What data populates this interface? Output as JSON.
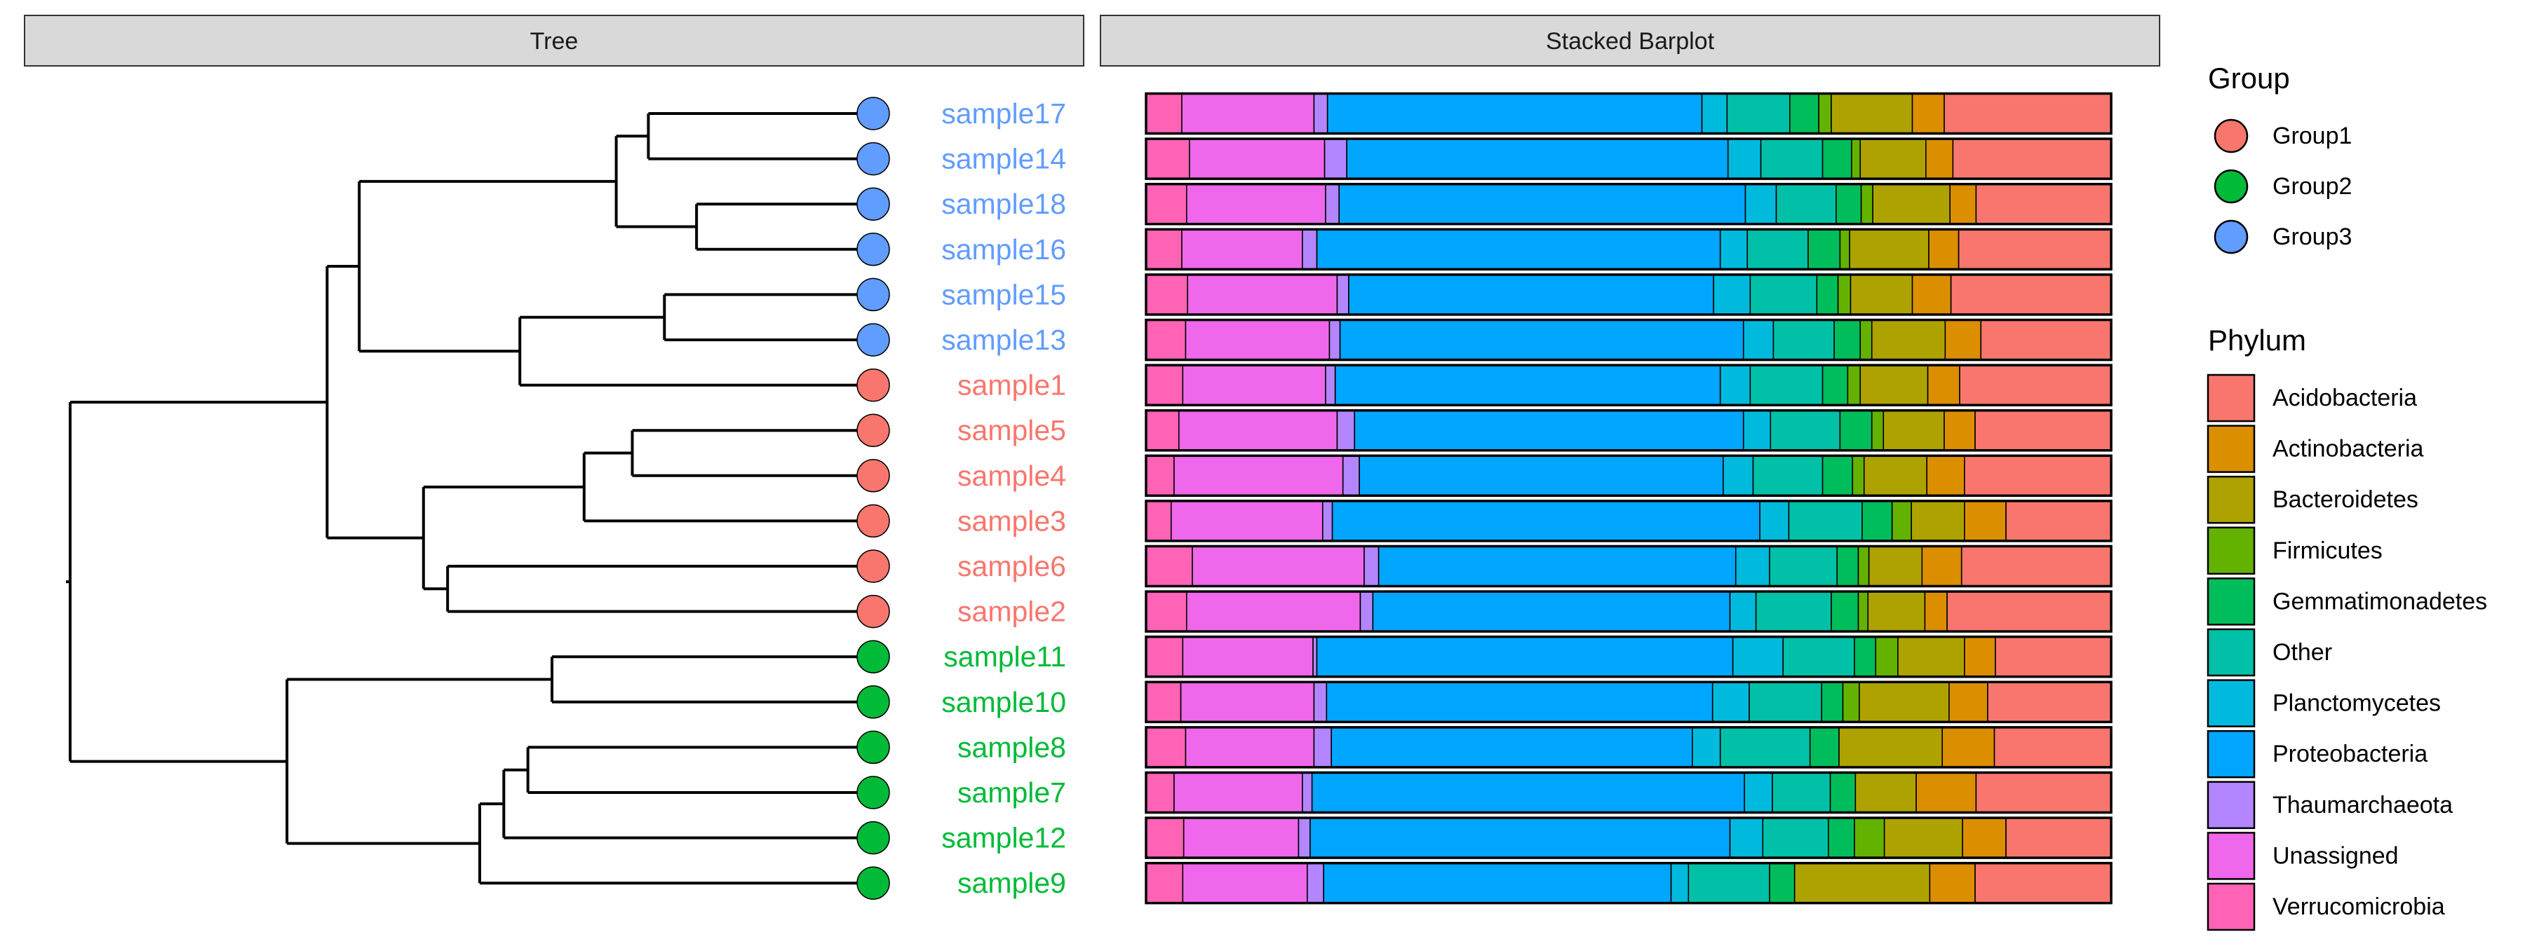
{
  "chart_data": {
    "type": "bar",
    "orientation": "horizontal",
    "stacked": true,
    "normalized": true,
    "panels": [
      "Tree",
      "Stacked Barplot"
    ],
    "categories": [
      "sample17",
      "sample14",
      "sample18",
      "sample16",
      "sample15",
      "sample13",
      "sample1",
      "sample5",
      "sample4",
      "sample3",
      "sample6",
      "sample2",
      "sample11",
      "sample10",
      "sample8",
      "sample7",
      "sample12",
      "sample9"
    ],
    "groups": {
      "sample17": "Group3",
      "sample14": "Group3",
      "sample18": "Group3",
      "sample16": "Group3",
      "sample15": "Group3",
      "sample13": "Group3",
      "sample1": "Group1",
      "sample5": "Group1",
      "sample4": "Group1",
      "sample3": "Group1",
      "sample6": "Group1",
      "sample2": "Group1",
      "sample11": "Group2",
      "sample10": "Group2",
      "sample8": "Group2",
      "sample7": "Group2",
      "sample12": "Group2",
      "sample9": "Group2"
    },
    "tree": {
      "children": [
        {
          "children": [
            {
              "children": [
                {
                  "children": [
                    {
                      "children": [
                        {
                          "tip": "sample17"
                        },
                        {
                          "tip": "sample14"
                        }
                      ],
                      "h": 0.28
                    },
                    {
                      "children": [
                        {
                          "tip": "sample18"
                        },
                        {
                          "tip": "sample16"
                        }
                      ],
                      "h": 0.22
                    }
                  ],
                  "h": 0.32
                },
                {
                  "children": [
                    {
                      "children": [
                        {
                          "tip": "sample15"
                        },
                        {
                          "tip": "sample13"
                        }
                      ],
                      "h": 0.26
                    },
                    {
                      "tip": "sample1"
                    }
                  ],
                  "h": 0.44
                }
              ],
              "h": 0.64
            },
            {
              "children": [
                {
                  "children": [
                    {
                      "children": [
                        {
                          "tip": "sample5"
                        },
                        {
                          "tip": "sample4"
                        }
                      ],
                      "h": 0.3
                    },
                    {
                      "tip": "sample3"
                    }
                  ],
                  "h": 0.36
                },
                {
                  "children": [
                    {
                      "tip": "sample6"
                    },
                    {
                      "tip": "sample2"
                    }
                  ],
                  "h": 0.53
                }
              ],
              "h": 0.56
            }
          ],
          "h": 0.68
        },
        {
          "children": [
            {
              "children": [
                {
                  "tip": "sample11"
                },
                {
                  "tip": "sample10"
                }
              ],
              "h": 0.4
            },
            {
              "children": [
                {
                  "children": [
                    {
                      "children": [
                        {
                          "tip": "sample8"
                        },
                        {
                          "tip": "sample7"
                        }
                      ],
                      "h": 0.43
                    },
                    {
                      "tip": "sample12"
                    }
                  ],
                  "h": 0.46
                },
                {
                  "tip": "sample9"
                }
              ],
              "h": 0.49
            }
          ],
          "h": 0.73
        }
      ],
      "h": 1.0
    },
    "phyla": [
      "Acidobacteria",
      "Actinobacteria",
      "Bacteroidetes",
      "Firmicutes",
      "Gemmatimonadetes",
      "Other",
      "Planctomycetes",
      "Proteobacteria",
      "Thaumarchaeota",
      "Unassigned",
      "Verrucomicrobia"
    ],
    "series": [
      {
        "name": "Verrucomicrobia",
        "values": [
          0.037,
          0.045,
          0.042,
          0.037,
          0.043,
          0.041,
          0.038,
          0.034,
          0.029,
          0.026,
          0.048,
          0.042,
          0.038,
          0.036,
          0.041,
          0.029,
          0.039,
          0.038
        ]
      },
      {
        "name": "Unassigned",
        "values": [
          0.137,
          0.14,
          0.144,
          0.125,
          0.155,
          0.149,
          0.148,
          0.164,
          0.175,
          0.157,
          0.178,
          0.18,
          0.135,
          0.138,
          0.133,
          0.133,
          0.119,
          0.129
        ]
      },
      {
        "name": "Thaumarchaeota",
        "values": [
          0.014,
          0.023,
          0.014,
          0.015,
          0.012,
          0.011,
          0.01,
          0.018,
          0.017,
          0.01,
          0.015,
          0.013,
          0.004,
          0.013,
          0.018,
          0.01,
          0.012,
          0.017
        ]
      },
      {
        "name": "Proteobacteria",
        "values": [
          0.388,
          0.395,
          0.421,
          0.418,
          0.378,
          0.418,
          0.399,
          0.403,
          0.377,
          0.443,
          0.37,
          0.37,
          0.431,
          0.4,
          0.374,
          0.448,
          0.435,
          0.36
        ]
      },
      {
        "name": "Planctomycetes",
        "values": [
          0.026,
          0.034,
          0.032,
          0.028,
          0.038,
          0.031,
          0.031,
          0.028,
          0.031,
          0.03,
          0.035,
          0.027,
          0.052,
          0.038,
          0.029,
          0.029,
          0.034,
          0.018
        ]
      },
      {
        "name": "Other",
        "values": [
          0.065,
          0.064,
          0.062,
          0.063,
          0.069,
          0.063,
          0.075,
          0.072,
          0.072,
          0.076,
          0.07,
          0.078,
          0.074,
          0.075,
          0.093,
          0.06,
          0.068,
          0.084
        ]
      },
      {
        "name": "Gemmatimonadetes",
        "values": [
          0.03,
          0.03,
          0.026,
          0.033,
          0.022,
          0.027,
          0.026,
          0.033,
          0.031,
          0.031,
          0.022,
          0.028,
          0.022,
          0.022,
          0.03,
          0.026,
          0.027,
          0.026
        ]
      },
      {
        "name": "Firmicutes",
        "values": [
          0.013,
          0.009,
          0.012,
          0.01,
          0.013,
          0.012,
          0.013,
          0.012,
          0.012,
          0.02,
          0.011,
          0.01,
          0.023,
          0.017,
          0.0,
          0.0,
          0.031,
          0.0
        ]
      },
      {
        "name": "Bacteroidetes",
        "values": [
          0.084,
          0.068,
          0.08,
          0.082,
          0.064,
          0.076,
          0.07,
          0.063,
          0.065,
          0.055,
          0.055,
          0.059,
          0.069,
          0.093,
          0.107,
          0.063,
          0.081,
          0.14
        ]
      },
      {
        "name": "Actinobacteria",
        "values": [
          0.033,
          0.028,
          0.027,
          0.031,
          0.04,
          0.037,
          0.033,
          0.032,
          0.039,
          0.043,
          0.041,
          0.023,
          0.032,
          0.04,
          0.054,
          0.062,
          0.045,
          0.047
        ]
      },
      {
        "name": "Acidobacteria",
        "values": [
          0.173,
          0.164,
          0.14,
          0.158,
          0.166,
          0.135,
          0.157,
          0.141,
          0.152,
          0.109,
          0.155,
          0.17,
          0.12,
          0.128,
          0.121,
          0.14,
          0.109,
          0.141
        ]
      }
    ],
    "colors": {
      "Acidobacteria": "#F8766D",
      "Actinobacteria": "#DB8E00",
      "Bacteroidetes": "#AEA200",
      "Firmicutes": "#64B200",
      "Gemmatimonadetes": "#00BD5C",
      "Other": "#00C1A7",
      "Planctomycetes": "#00BADE",
      "Proteobacteria": "#00A6FF",
      "Thaumarchaeota": "#B385FF",
      "Unassigned": "#EF67EB",
      "Verrucomicrobia": "#FF63B6"
    },
    "group_colors": {
      "Group1": "#F8766D",
      "Group2": "#00BA38",
      "Group3": "#619CFF"
    },
    "legends": [
      {
        "title": "Group",
        "entries": [
          "Group1",
          "Group2",
          "Group3"
        ],
        "shape": "circle"
      },
      {
        "title": "Phylum",
        "entries": [
          "Acidobacteria",
          "Actinobacteria",
          "Bacteroidetes",
          "Firmicutes",
          "Gemmatimonadetes",
          "Other",
          "Planctomycetes",
          "Proteobacteria",
          "Thaumarchaeota",
          "Unassigned",
          "Verrucomicrobia"
        ],
        "shape": "square"
      }
    ],
    "legend_position": "right",
    "grid": false
  }
}
